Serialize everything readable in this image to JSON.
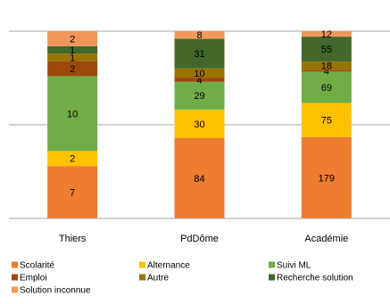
{
  "chart_data": {
    "type": "stacked_bar_100",
    "categories": [
      "Thiers",
      "PdDôme",
      "Académie"
    ],
    "series": [
      {
        "name": "Scolarité",
        "color": "#ED7D31",
        "values": [
          7,
          84,
          179
        ]
      },
      {
        "name": "Alternance",
        "color": "#FFC000",
        "values": [
          2,
          30,
          75
        ]
      },
      {
        "name": "Suivi ML",
        "color": "#70AD47",
        "values": [
          10,
          29,
          69
        ]
      },
      {
        "name": "Emploi",
        "color": "#9E480E",
        "values": [
          2,
          4,
          4
        ]
      },
      {
        "name": "Autre",
        "color": "#997300",
        "values": [
          1,
          10,
          18
        ]
      },
      {
        "name": "Recherche solution",
        "color": "#43682B",
        "values": [
          1,
          31,
          55
        ]
      },
      {
        "name": "Solution inconnue",
        "color": "#F1975A",
        "values": [
          2,
          8,
          12
        ]
      }
    ],
    "ylim": [
      0,
      100
    ],
    "yticks": [
      0,
      50,
      100
    ],
    "grid": true
  }
}
